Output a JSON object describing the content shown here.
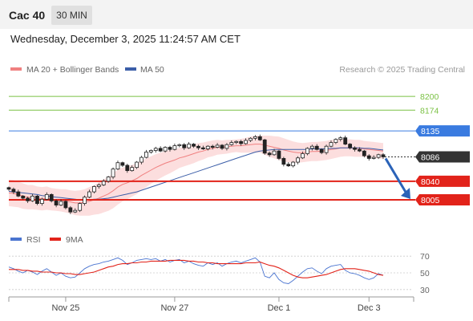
{
  "header": {
    "symbol": "Cac 40",
    "timeframe": "30 MIN",
    "datetime": "Wednesday, December 3, 2025 11:24:57 AM CET"
  },
  "legend": {
    "ma20": "MA 20 + Bollinger Bands",
    "ma50": "MA 50",
    "copyright": "Research © 2025 Trading Central"
  },
  "rsi_legend": {
    "rsi": "RSI",
    "ma9": "9MA"
  },
  "colors": {
    "resistance_green": "#7ac143",
    "pivot_blue": "#3a7be0",
    "support_red": "#e2231a",
    "current_dark": "#333333",
    "ma50_blue": "#3b5ea8",
    "bollinger_fill": "#fbd3d3",
    "candle_up": "#ffffff",
    "candle_down": "#222222",
    "rsi_blue": "#4a74d0",
    "rsi_ma_red": "#e2231a",
    "arrow_blue": "#2b63b8"
  },
  "chart_data": [
    {
      "type": "candlestick",
      "title": "Cac 40",
      "x_ticks": [
        "Nov 25",
        "Nov 27",
        "Dec 1",
        "Dec 3"
      ],
      "levels": [
        {
          "value": 8200,
          "label": "8200",
          "role": "resistance"
        },
        {
          "value": 8174,
          "label": "8174",
          "role": "resistance"
        },
        {
          "value": 8135,
          "label": "8135",
          "role": "pivot"
        },
        {
          "value": 8086,
          "label": "8086",
          "role": "current"
        },
        {
          "value": 8040,
          "label": "8040",
          "role": "support"
        },
        {
          "value": 8005,
          "label": "8005",
          "role": "support"
        }
      ],
      "close_series": [
        8025,
        8020,
        8012,
        8008,
        8003,
        8012,
        7998,
        8006,
        8015,
        8003,
        7995,
        8002,
        7990,
        7982,
        7985,
        7998,
        8010,
        8020,
        8030,
        8033,
        8040,
        8048,
        8063,
        8075,
        8070,
        8060,
        8066,
        8076,
        8085,
        8095,
        8098,
        8102,
        8097,
        8104,
        8100,
        8107,
        8109,
        8103,
        8110,
        8106,
        8103,
        8101,
        8106,
        8104,
        8108,
        8102,
        8109,
        8113,
        8115,
        8111,
        8117,
        8121,
        8124,
        8118,
        8093,
        8090,
        8097,
        8083,
        8072,
        8069,
        8076,
        8084,
        8092,
        8102,
        8106,
        8100,
        8094,
        8106,
        8113,
        8119,
        8122,
        8110,
        8103,
        8100,
        8097,
        8088,
        8083,
        8085,
        8090,
        8086
      ],
      "ma20_series": [
        8018,
        8017,
        8015,
        8012,
        8010,
        8010,
        8008,
        8007,
        8008,
        8006,
        8005,
        8004,
        8003,
        8001,
        7999,
        7999,
        8000,
        8002,
        8005,
        8008,
        8012,
        8016,
        8022,
        8029,
        8034,
        8037,
        8041,
        8045,
        8051,
        8056,
        8061,
        8066,
        8070,
        8074,
        8077,
        8080,
        8084,
        8086,
        8089,
        8092,
        8095,
        8097,
        8100,
        8102,
        8104,
        8104,
        8105,
        8106,
        8107,
        8107,
        8108,
        8109,
        8110,
        8110,
        8108,
        8106,
        8104,
        8102,
        8099,
        8097,
        8095,
        8094,
        8094,
        8095,
        8096,
        8096,
        8097,
        8098,
        8100,
        8101,
        8103,
        8103,
        8103,
        8102,
        8102,
        8101,
        8100,
        8099,
        8098,
        8097
      ],
      "ma50_series": [
        8021,
        8020,
        8019,
        8018,
        8017,
        8016,
        8015,
        8013,
        8012,
        8011,
        8010,
        8009,
        8008,
        8007,
        8006,
        8005,
        8005,
        8005,
        8006,
        8006,
        8007,
        8008,
        8010,
        8012,
        8014,
        8016,
        8018,
        8020,
        8023,
        8026,
        8029,
        8032,
        8035,
        8038,
        8041,
        8044,
        8047,
        8050,
        8053,
        8056,
        8059,
        8062,
        8065,
        8068,
        8071,
        8074,
        8077,
        8080,
        8083,
        8086,
        8089,
        8092,
        8095,
        8097,
        8098,
        8099,
        8100,
        8100,
        8100,
        8100,
        8100,
        8100,
        8100,
        8100,
        8101,
        8101,
        8101,
        8101,
        8102,
        8102,
        8103,
        8103,
        8103,
        8103,
        8103,
        8102,
        8102,
        8101,
        8100,
        8099
      ],
      "bollinger_half_width": [
        25,
        25,
        24,
        24,
        23,
        23,
        22,
        22,
        22,
        21,
        21,
        21,
        22,
        22,
        23,
        24,
        25,
        27,
        28,
        30,
        31,
        32,
        33,
        33,
        32,
        31,
        30,
        29,
        28,
        27,
        26,
        25,
        24,
        23,
        22,
        20,
        19,
        18,
        18,
        18,
        17,
        16,
        15,
        15,
        14,
        13,
        13,
        12,
        12,
        13,
        14,
        15,
        16,
        16,
        18,
        20,
        21,
        22,
        22,
        21,
        20,
        19,
        18,
        18,
        18,
        18,
        18,
        18,
        18,
        17,
        17,
        16,
        16,
        16,
        16,
        15,
        15,
        15,
        15,
        15
      ],
      "forecast_arrow": {
        "from": 8086,
        "to": 8005
      },
      "ylim": [
        7955,
        8235
      ]
    },
    {
      "type": "line",
      "title": "RSI",
      "y_ticks": [
        70,
        50,
        30
      ],
      "ylim": [
        25,
        75
      ],
      "series": [
        {
          "name": "RSI",
          "values": [
            57,
            55,
            52,
            50,
            53,
            51,
            48,
            52,
            55,
            51,
            47,
            50,
            46,
            44,
            45,
            50,
            55,
            58,
            60,
            61,
            63,
            64,
            66,
            68,
            65,
            60,
            62,
            65,
            66,
            67,
            66,
            67,
            64,
            66,
            63,
            65,
            66,
            62,
            64,
            61,
            59,
            58,
            62,
            60,
            62,
            58,
            61,
            63,
            64,
            62,
            64,
            66,
            68,
            63,
            46,
            44,
            50,
            42,
            38,
            37,
            41,
            46,
            51,
            55,
            56,
            52,
            49,
            55,
            58,
            59,
            60,
            53,
            50,
            49,
            47,
            44,
            42,
            44,
            49,
            47
          ]
        },
        {
          "name": "9MA",
          "values": [
            54,
            54,
            54,
            53,
            53,
            52,
            52,
            51,
            51,
            51,
            50,
            50,
            49,
            49,
            48,
            48,
            49,
            50,
            51,
            53,
            55,
            57,
            58,
            60,
            61,
            61,
            62,
            62,
            63,
            63,
            64,
            64,
            64,
            64,
            65,
            65,
            65,
            65,
            64,
            64,
            63,
            63,
            62,
            62,
            61,
            61,
            61,
            61,
            61,
            61,
            62,
            62,
            62,
            63,
            61,
            59,
            58,
            56,
            53,
            50,
            47,
            45,
            44,
            44,
            45,
            46,
            47,
            48,
            50,
            52,
            54,
            55,
            55,
            55,
            54,
            53,
            52,
            50,
            48,
            47
          ]
        }
      ]
    }
  ]
}
